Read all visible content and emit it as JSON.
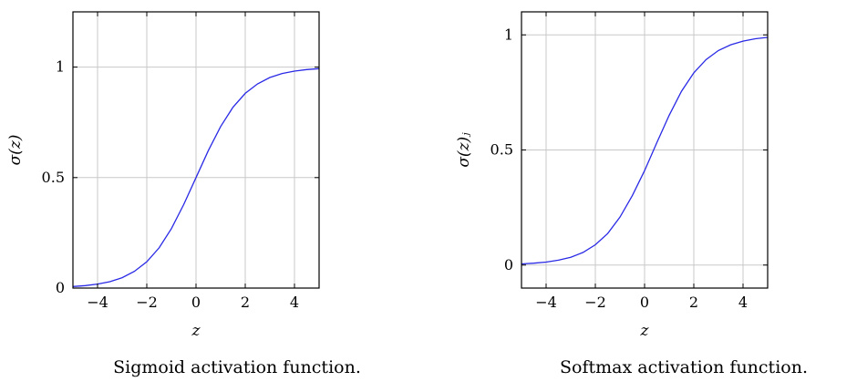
{
  "chart_data": [
    {
      "type": "line",
      "caption": "Sigmoid activation function.",
      "xlabel": "z",
      "ylabel": "σ(z)",
      "xlim": [
        -5,
        5
      ],
      "ylim": [
        0,
        1.25
      ],
      "xticks": [
        -4,
        -2,
        0,
        2,
        4
      ],
      "xtick_labels": [
        "−4",
        "−2",
        "0",
        "2",
        "4"
      ],
      "yticks": [
        0,
        0.5,
        1
      ],
      "ytick_labels": [
        "0",
        "0.5",
        "1"
      ],
      "grid": true,
      "legend": "none",
      "series": [
        {
          "color": "#2a2ae6",
          "x": [
            -5,
            -4.5,
            -4,
            -3.5,
            -3,
            -2.5,
            -2,
            -1.5,
            -1,
            -0.5,
            0,
            0.5,
            1,
            1.5,
            2,
            2.5,
            3,
            3.5,
            4,
            4.5,
            5
          ],
          "y": [
            0.007,
            0.011,
            0.018,
            0.029,
            0.047,
            0.076,
            0.119,
            0.182,
            0.269,
            0.378,
            0.5,
            0.622,
            0.731,
            0.818,
            0.881,
            0.924,
            0.953,
            0.971,
            0.982,
            0.989,
            0.993
          ]
        }
      ]
    },
    {
      "type": "line",
      "caption": "Softmax activation function.",
      "xlabel": "z",
      "ylabel": "σ(z)ⱼ",
      "xlim": [
        -5,
        5
      ],
      "ylim": [
        -0.1,
        1.1
      ],
      "xticks": [
        -4,
        -2,
        0,
        2,
        4
      ],
      "xtick_labels": [
        "−4",
        "−2",
        "0",
        "2",
        "4"
      ],
      "yticks": [
        0,
        0.5,
        1
      ],
      "ytick_labels": [
        "0",
        "0.5",
        "1"
      ],
      "grid": true,
      "legend": "none",
      "series": [
        {
          "color": "#2a2ae6",
          "x": [
            -5,
            -4.5,
            -4,
            -3.5,
            -3,
            -2.5,
            -2,
            -1.5,
            -1,
            -0.5,
            0,
            0.5,
            1,
            1.5,
            2,
            2.5,
            3,
            3.5,
            4,
            4.5,
            5
          ],
          "y": [
            0.005,
            0.008,
            0.013,
            0.021,
            0.034,
            0.055,
            0.088,
            0.137,
            0.208,
            0.301,
            0.41,
            0.532,
            0.651,
            0.755,
            0.835,
            0.893,
            0.932,
            0.957,
            0.973,
            0.983,
            0.989
          ]
        }
      ]
    }
  ]
}
